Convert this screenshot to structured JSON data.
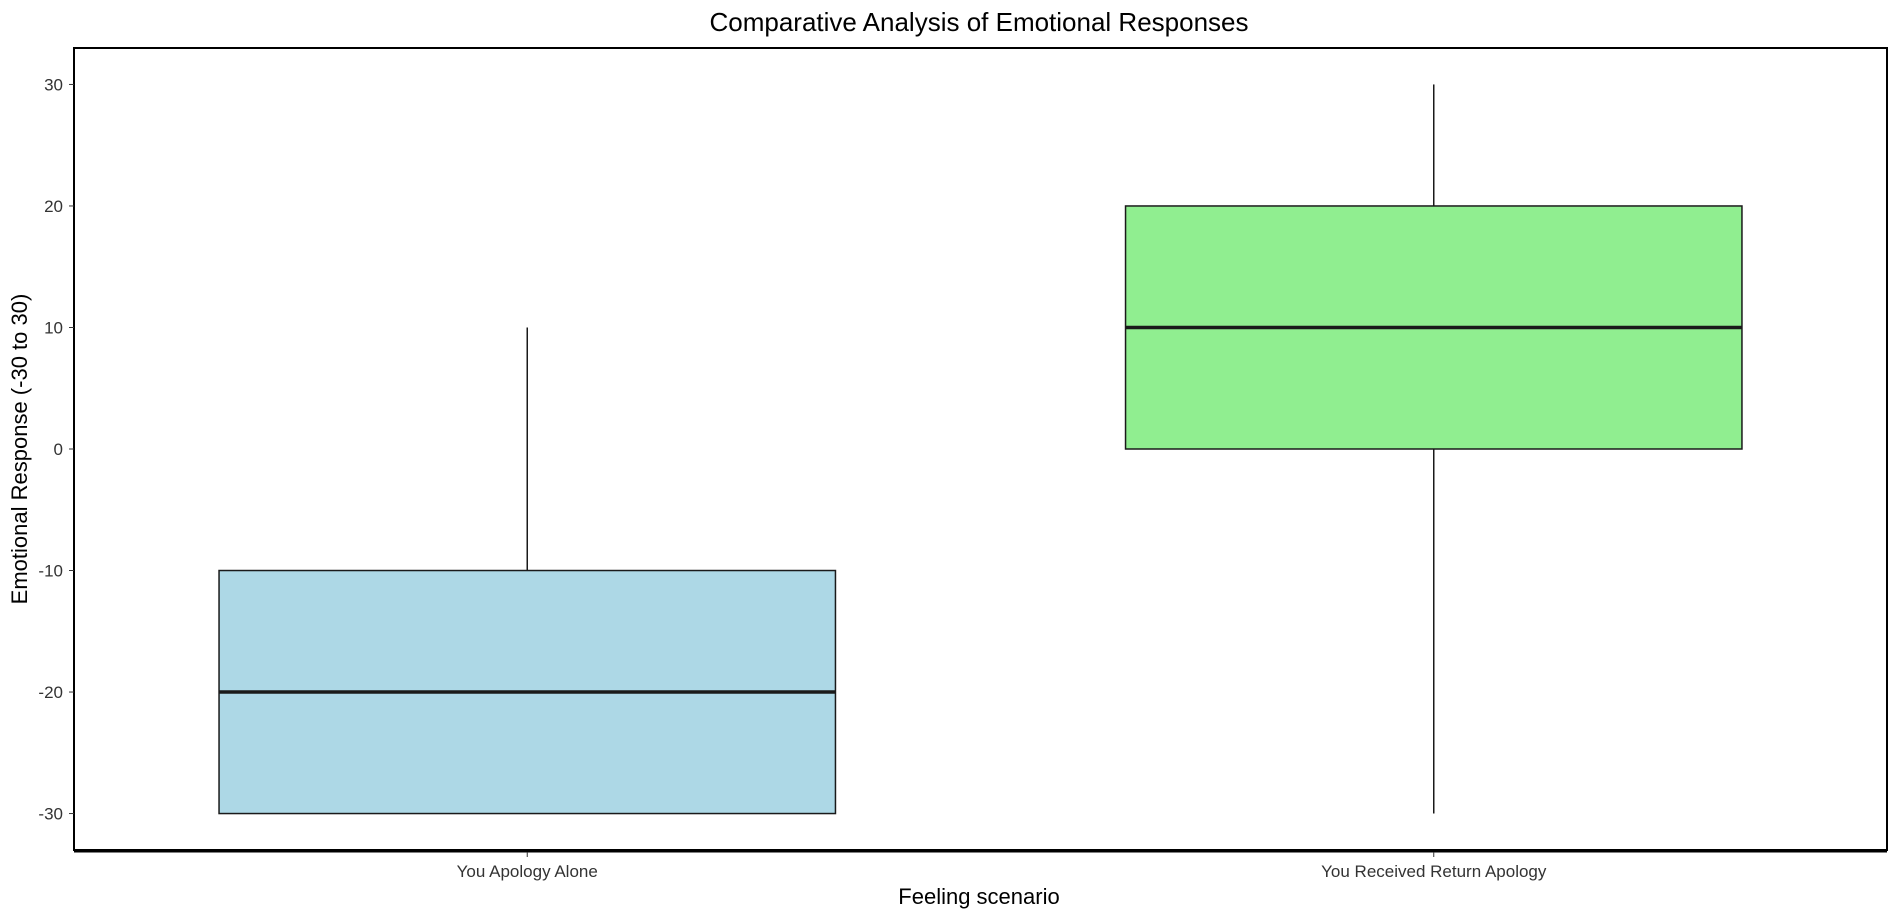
{
  "chart_data": {
    "type": "boxplot",
    "title": "Comparative Analysis of Emotional Responses",
    "xlabel": "Feeling scenario",
    "ylabel": "Emotional Response (-30 to 30)",
    "ylim": [
      -33,
      33
    ],
    "yticks": [
      -30,
      -20,
      -10,
      0,
      10,
      20,
      30
    ],
    "categories": [
      "You Apology Alone",
      "You Received Return Apology"
    ],
    "boxes": [
      {
        "category": "You Apology Alone",
        "min": -30,
        "q1": -30,
        "median": -20,
        "q3": -10,
        "max": 10,
        "color": "#add8e6"
      },
      {
        "category": "You Received Return Apology",
        "min": -30,
        "q1": 0,
        "median": 10,
        "q3": 20,
        "max": 30,
        "color": "#90ee90"
      }
    ],
    "grid": false,
    "legend": "none"
  }
}
